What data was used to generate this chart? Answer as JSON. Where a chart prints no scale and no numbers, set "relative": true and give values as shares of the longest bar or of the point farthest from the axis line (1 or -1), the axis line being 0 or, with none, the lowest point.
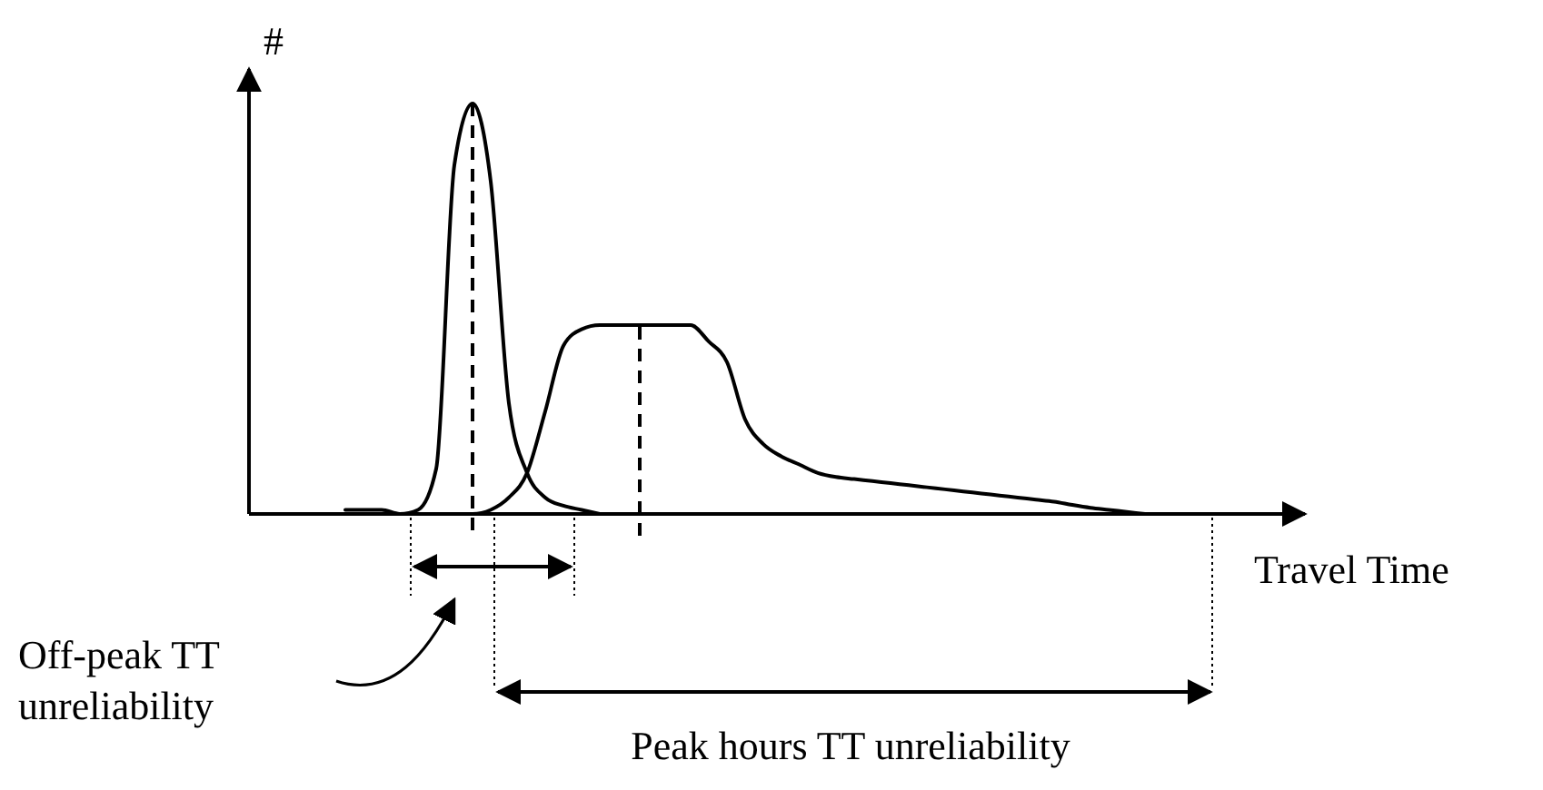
{
  "chart_data": {
    "type": "line",
    "relative": true,
    "ylabel": "#",
    "xlabel": "Travel Time",
    "categories": [
      null,
      null,
      null,
      null,
      null,
      null,
      null,
      null,
      null,
      null,
      null,
      null,
      null,
      null,
      null,
      null,
      null,
      null,
      null,
      null,
      null,
      null,
      null,
      null,
      null,
      null,
      null,
      null,
      null,
      null,
      null,
      null,
      null,
      null,
      null,
      null,
      null,
      null,
      null,
      null,
      null,
      null,
      null,
      null,
      null,
      null,
      null,
      null,
      null,
      null,
      null,
      null,
      null,
      null,
      null,
      null,
      null
    ],
    "series": [
      {
        "color": "#000000",
        "values": [
          null,
          null,
          null,
          null,
          null,
          0.01,
          0.01,
          0.01,
          0,
          0.01,
          0.11,
          0.85,
          1,
          0.81,
          0.27,
          0.1,
          0.04,
          0.02,
          0.01,
          0,
          null,
          null,
          null,
          null,
          null,
          null,
          null,
          null,
          null,
          null,
          null,
          null,
          null,
          null,
          null,
          null,
          null,
          null,
          null,
          null,
          null,
          null,
          null,
          null,
          null,
          null,
          null,
          null,
          null,
          null,
          null,
          null,
          null,
          null,
          null,
          null,
          null
        ]
      },
      {
        "color": "#000000",
        "values": [
          null,
          null,
          null,
          null,
          null,
          null,
          null,
          null,
          null,
          0,
          0,
          0,
          0,
          0.01,
          0.04,
          0.1,
          0.25,
          0.41,
          0.45,
          0.46,
          0.46,
          0.46,
          0.46,
          0.46,
          0.46,
          0.42,
          0.37,
          0.23,
          0.17,
          0.14,
          0.12,
          0.1,
          0.09,
          0.085,
          0.08,
          0.075,
          0.07,
          0.065,
          0.06,
          0.055,
          0.05,
          0.045,
          0.04,
          0.035,
          0.03,
          0.022,
          0.015,
          0.01,
          0.005,
          0,
          null,
          null,
          null,
          null,
          null,
          null,
          null
        ]
      }
    ],
    "annotations": [
      "Off-peak TT unreliability",
      "Peak hours TT unreliability"
    ]
  }
}
